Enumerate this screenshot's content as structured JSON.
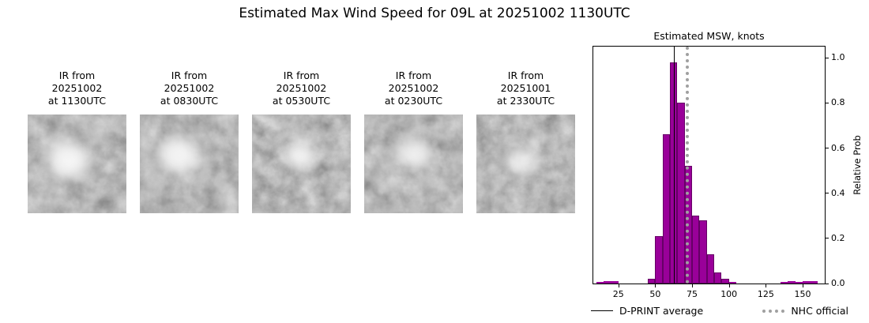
{
  "title": "Estimated Max Wind Speed for 09L at 20251002 1130UTC",
  "ir_panels": [
    {
      "label": "IR from\n20251002\nat 1130UTC"
    },
    {
      "label": "IR from\n20251002\nat 0830UTC"
    },
    {
      "label": "IR from\n20251002\nat 0530UTC"
    },
    {
      "label": "IR from\n20251002\nat 0230UTC"
    },
    {
      "label": "IR from\n20251001\nat 2330UTC"
    }
  ],
  "chart_data": {
    "type": "bar",
    "title": "Estimated MSW, knots",
    "ylabel": "Relative Prob",
    "xlabel": "",
    "xlim": [
      8,
      165
    ],
    "ylim": [
      0,
      1.05
    ],
    "xticks": [
      25,
      50,
      75,
      100,
      125,
      150
    ],
    "yticks": [
      0.0,
      0.2,
      0.4,
      0.6,
      0.8,
      1.0
    ],
    "grid": false,
    "bin_width": 5,
    "bins": [
      10,
      15,
      20,
      45,
      50,
      55,
      60,
      65,
      70,
      75,
      80,
      85,
      90,
      95,
      100,
      135,
      140,
      145,
      150,
      155
    ],
    "values": [
      0.008,
      0.012,
      0.01,
      0.02,
      0.21,
      0.66,
      0.98,
      0.8,
      0.52,
      0.3,
      0.28,
      0.13,
      0.05,
      0.02,
      0.008,
      0.008,
      0.01,
      0.008,
      0.012,
      0.01
    ],
    "bar_color": "#990099",
    "bar_edge_color": "#660066",
    "dprint_average_knots": 63,
    "nhc_official_knots": 72,
    "line_colors": {
      "dprint": "#000000",
      "nhc": "#a0a0a0"
    },
    "legend": [
      {
        "label": "D-PRINT average",
        "style": "solid-black"
      },
      {
        "label": "NHC official",
        "style": "dotted-gray"
      }
    ],
    "legend_position": "bottom"
  }
}
